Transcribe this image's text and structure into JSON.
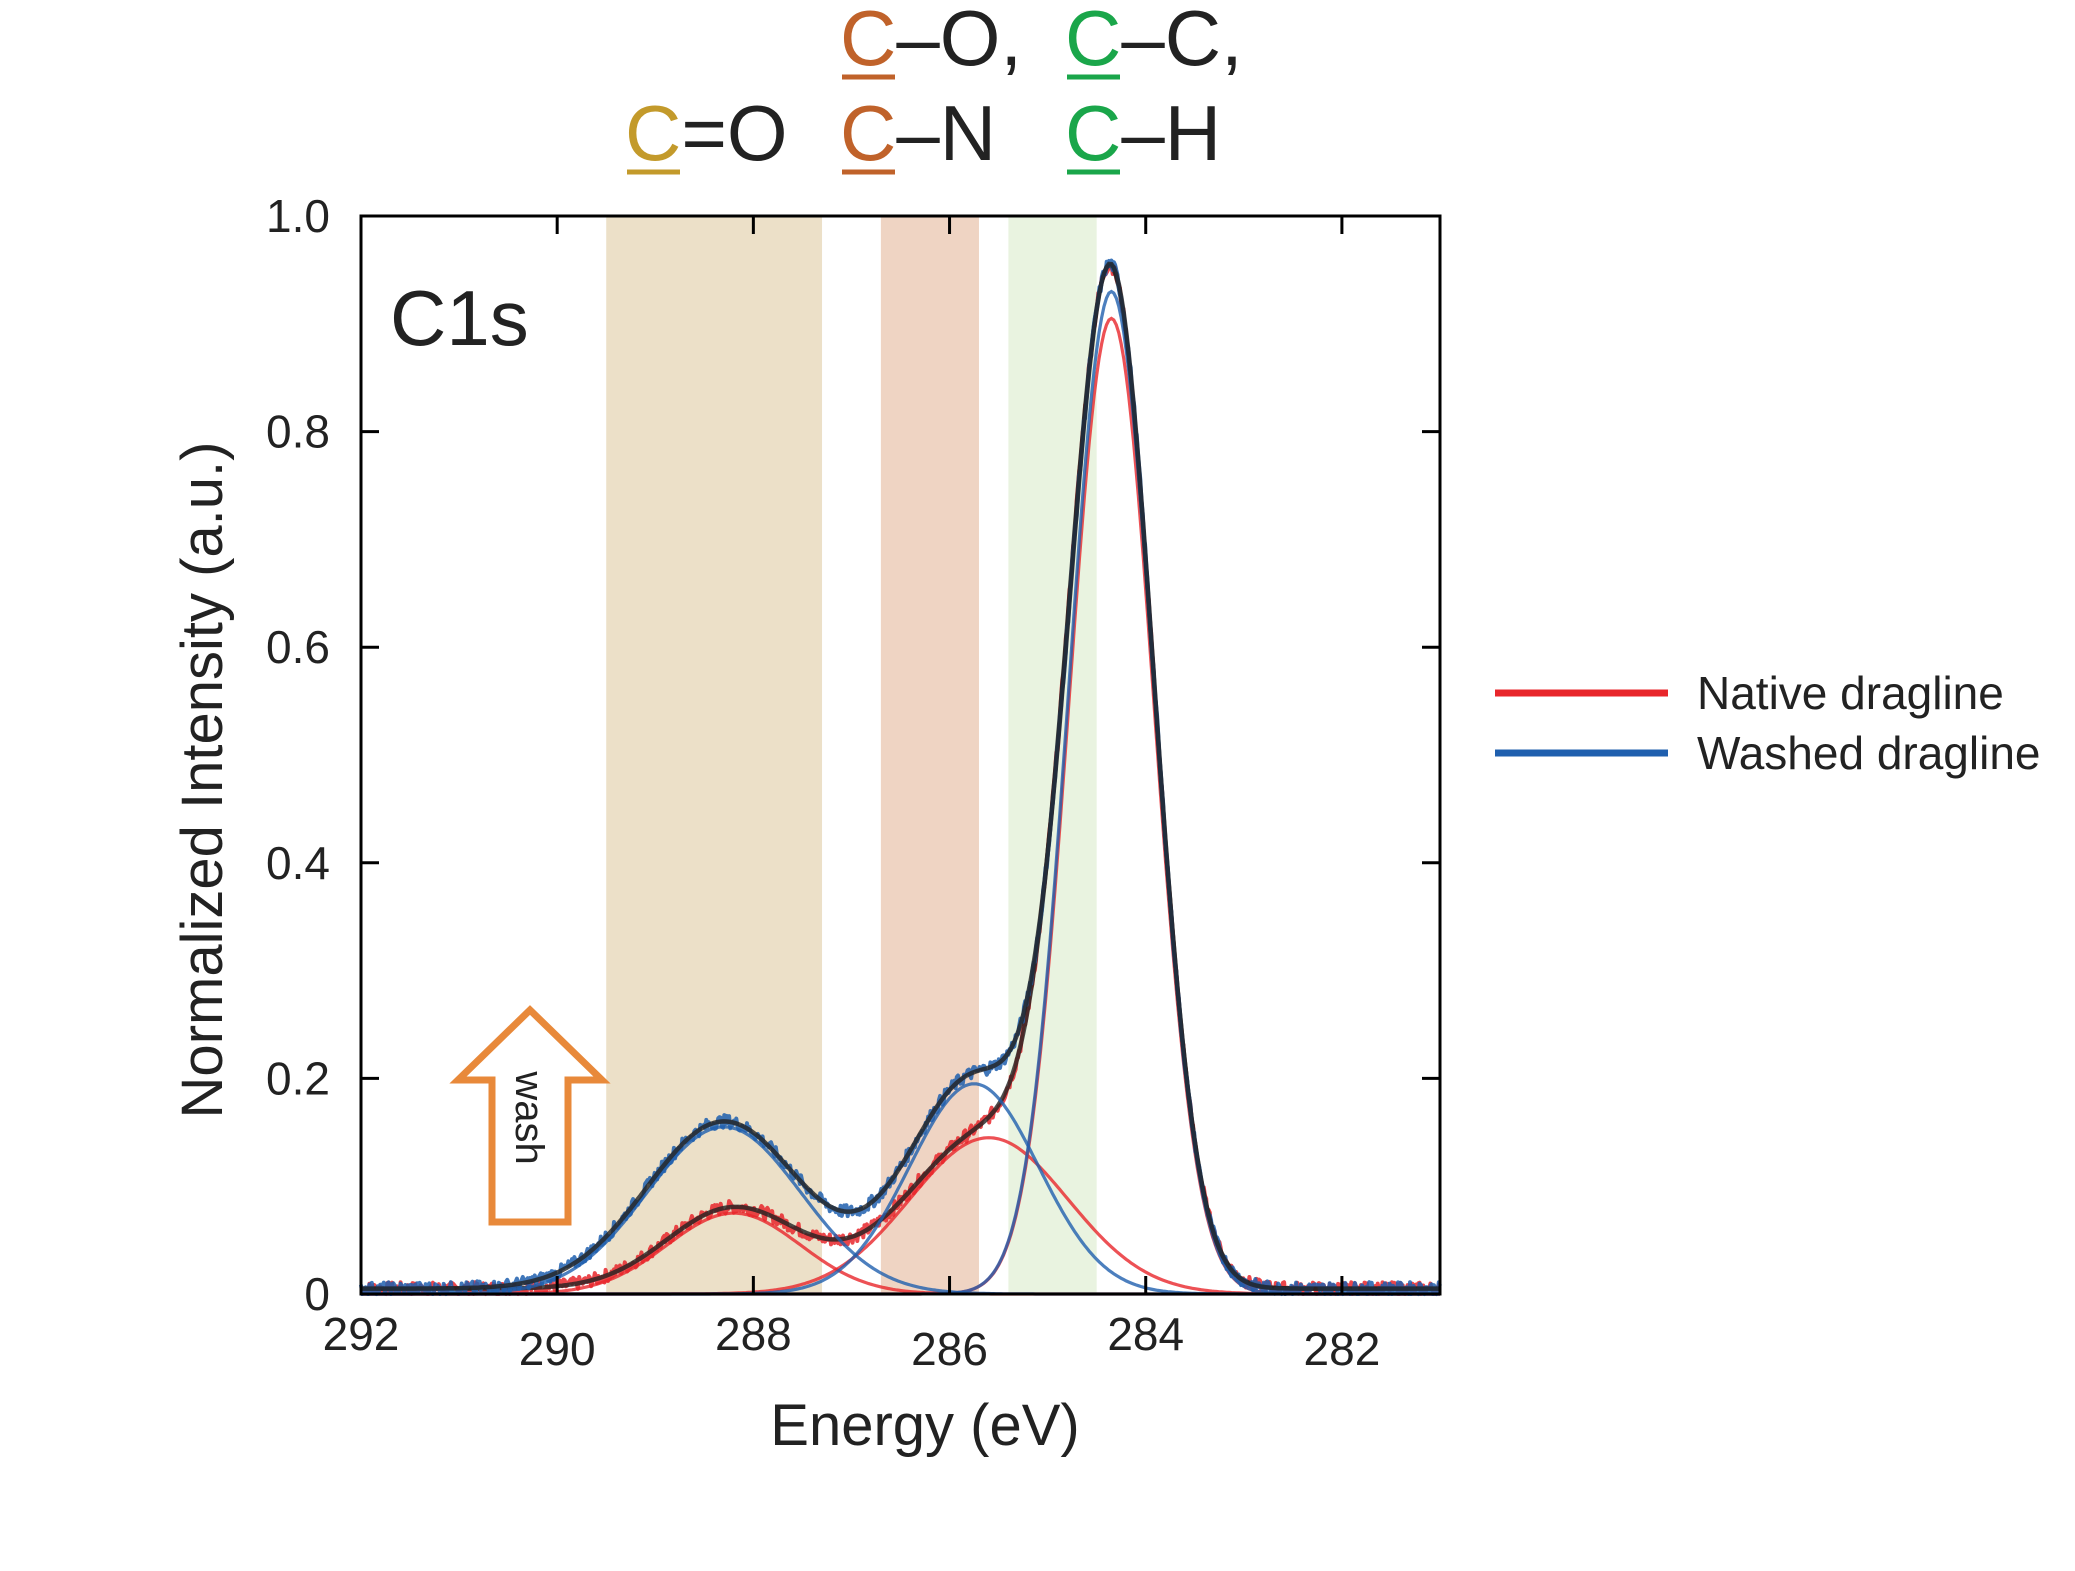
{
  "chart_data": {
    "type": "line",
    "title": "",
    "panel_label": "C1s",
    "xlabel": "Energy (eV)",
    "ylabel": "Normalized Intensity  (a.u.)",
    "xlim": [
      292,
      281
    ],
    "ylim": [
      0,
      1.0
    ],
    "x_ticks": [
      292,
      290,
      288,
      286,
      284,
      282
    ],
    "y_ticks": [
      {
        "value": 0,
        "label": "0"
      },
      {
        "value": 0.2,
        "label": "0.2"
      },
      {
        "value": 0.4,
        "label": "0.4"
      },
      {
        "value": 0.6,
        "label": "0.6"
      },
      {
        "value": 0.8,
        "label": "0.8"
      },
      {
        "value": 1.0,
        "label": "1.0"
      }
    ],
    "grid": false,
    "legend_position": "right",
    "legend": [
      {
        "label": "Native dragline",
        "color": "#e8262b"
      },
      {
        "label": "Washed dragline",
        "color": "#1f5fae"
      }
    ],
    "bands": [
      {
        "name": "C=O",
        "from": 289.5,
        "to": 287.3,
        "color": "#ece0c8"
      },
      {
        "name": "C-O / C-N",
        "from": 286.7,
        "to": 285.7,
        "color": "#efd4c3"
      },
      {
        "name": "C-C / C-H",
        "from": 285.4,
        "to": 284.5,
        "color": "#e9f3e0"
      }
    ],
    "band_labels": [
      {
        "letter": "C",
        "rest": "=O",
        "color": "#c39a2b",
        "row": 2,
        "center": 288.4
      },
      {
        "letter": "C",
        "rest": "–O,",
        "color": "#c0622a",
        "row": 1,
        "center": 285.3
      },
      {
        "letter": "C",
        "rest": "–N",
        "color": "#c0622a",
        "row": 2,
        "center": 285.6
      },
      {
        "letter": "C",
        "rest": "–C,",
        "color": "#1aa64a",
        "row": 1,
        "center": 283.4
      },
      {
        "letter": "C",
        "rest": "–H",
        "color": "#1aa64a",
        "row": 2,
        "center": 283.6
      }
    ],
    "wash_arrow": {
      "label": "wash",
      "color": "#e8893a",
      "x_energy": 290.3,
      "y_from": 0.07,
      "y_to": 0.26
    },
    "series": [
      {
        "name": "Native dragline",
        "color": "#e8262b",
        "background": 0.005,
        "components": [
          {
            "center": 284.35,
            "amp": 0.905,
            "fwhm": 1.02,
            "color": "#e8262b"
          },
          {
            "center": 285.6,
            "amp": 0.145,
            "fwhm": 1.9,
            "color": "#e8262b"
          },
          {
            "center": 288.2,
            "amp": 0.075,
            "fwhm": 1.6,
            "color": "#e8262b"
          }
        ]
      },
      {
        "name": "Washed dragline",
        "color": "#1f5fae",
        "background": 0.005,
        "components": [
          {
            "center": 284.35,
            "amp": 0.93,
            "fwhm": 1.02,
            "color": "#1f5fae"
          },
          {
            "center": 285.75,
            "amp": 0.195,
            "fwhm": 1.55,
            "color": "#1f5fae"
          },
          {
            "center": 288.3,
            "amp": 0.155,
            "fwhm": 1.85,
            "color": "#1f5fae"
          }
        ]
      }
    ]
  }
}
